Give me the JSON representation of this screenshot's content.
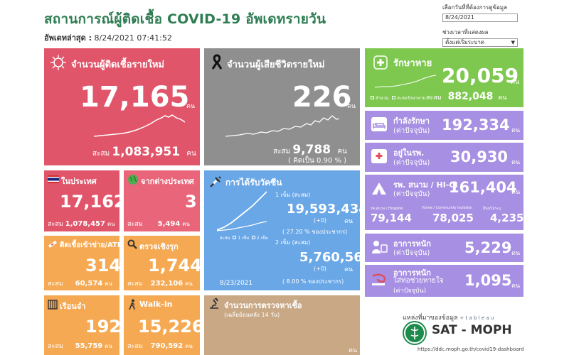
{
  "header": {
    "title": "สถานการณ์ผู้ติดเชื้อ COVID-19 อัพเดทรายวัน",
    "updated_label": "อัพเดทล่าสุด :",
    "updated_value": "8/24/2021 07:41:52"
  },
  "filters": {
    "date_label": "เลือกวันที่ที่ต้องการดูข้อมูล",
    "date_value": "8/24/2021",
    "range_label": "ช่วงเวลาที่แสดงผล",
    "range_value": "ตั้งแต่เริ่มระบาด"
  },
  "new_cases": {
    "title": "จำนวนผู้ติดเชื้อรายใหม่",
    "value": "17,165",
    "unit": "คน",
    "total_label": "สะสม",
    "total_value": "1,083,951",
    "total_unit": "คน"
  },
  "deaths": {
    "title": "จำนวนผู้เสียชีวิตรายใหม่",
    "value": "226",
    "unit": "คน",
    "total_label": "สะสม",
    "total_value": "9,788",
    "total_unit": "คน",
    "pct_text": "( คิดเป็น     0.90 % )"
  },
  "recovered": {
    "title": "รักษาหาย",
    "value": "20,059",
    "unit": "คน",
    "legend_daily": "จำนวน",
    "legend_cumulative": "สะสมรักษาหาย",
    "total_label": "สะสม",
    "total_value": "882,048",
    "total_unit": "คน"
  },
  "in_treatment": {
    "title": "กำลังรักษา",
    "subtitle": "(ค่าปัจจุบัน)",
    "value": "192,334",
    "unit": "คน"
  },
  "in_hospital": {
    "title": "อยู่ในรพ.",
    "subtitle": "(ค่าปัจจุบัน)",
    "value": "30,930",
    "unit": "คน"
  },
  "field_hospital": {
    "title": "รพ. สนาม / HI-CI",
    "subtitle": "(ค่าปัจจุบัน)",
    "value": "161,404",
    "unit": "คน",
    "sub1_label": "รพ.สนาม / Hospitel",
    "sub1_value": "79,144",
    "sub2_label": "Home / Community Isolation",
    "sub2_value": "78,025",
    "sub3_label": "อื่นๆ/ไม่ระบุ",
    "sub3_value": "4,235"
  },
  "severe": {
    "title": "อาการหนัก",
    "subtitle": "(ค่าปัจจุบัน)",
    "value": "5,229",
    "unit": "คน"
  },
  "ventilator": {
    "title": "อาการหนัก",
    "title2": "ใส่ท่อช่วยหายใจ",
    "subtitle": "(ค่าปัจจุบัน)",
    "value": "1,095",
    "unit": "คน"
  },
  "domestic": {
    "title": "ในประเทศ",
    "value": "17,162",
    "total_label": "สะสม",
    "total_value": "1,078,457",
    "total_unit": "คน"
  },
  "imported": {
    "title": "จากต่างประเทศ",
    "value": "3",
    "total_label": "สะสม",
    "total_value": "5,494",
    "total_unit": "คน"
  },
  "prison_atk": {
    "title": "ติดเชื้อเข้าข่าย/ATK",
    "value": "314",
    "total_label": "สะสม",
    "total_value": "60,574",
    "total_unit": "คน"
  },
  "proactive": {
    "title": "ตรวจเชิงรุก",
    "value": "1,744",
    "total_label": "สะสม",
    "total_value": "232,106",
    "total_unit": "คน"
  },
  "prison": {
    "title": "เรือนจำ",
    "value": "192",
    "total_label": "สะสม",
    "total_value": "55,759",
    "total_unit": "คน"
  },
  "walkin": {
    "title": "Walk-in",
    "value": "15,226",
    "total_label": "สะสม",
    "total_value": "790,592",
    "total_unit": "คน"
  },
  "vaccine": {
    "title": "การได้รับวัคซีน",
    "dose1_label": "1 เข็ม (สะสม)",
    "dose1_value": "19,593,434",
    "dose1_delta": "(+0)",
    "dose1_unit": "คน",
    "dose1_pct": "( 27.20 % ของประชากร)",
    "dose2_label": "2 เข็ม (สะสม)",
    "dose2_value": "5,760,567",
    "dose2_delta": "(+0)",
    "dose2_unit": "คน",
    "dose2_pct": "(   8.00 % ของประชากร)",
    "legend_cum": "สะสม",
    "legend_d1": "1 เข็ม",
    "legend_d2": "2 เข็ม",
    "date": "8/23/2021"
  },
  "tests": {
    "title": "จำนวนการตรวจหาเชื้อ",
    "subtitle": "(เฉลี่ยย้อนหลัง 14 วัน)",
    "unit": "คน"
  },
  "footer": {
    "source_label": "แหล่งที่มาของข้อมูล",
    "tableau": "+ t a b l e a u",
    "org": "SAT - MOPH",
    "url": "https://ddc.moph.go.th/covid19-dashboard"
  },
  "colors": {
    "red": "#e1556a",
    "grey": "#8f8f8f",
    "green": "#7ec850",
    "purple": "#a78fe3",
    "orange": "#f5a953",
    "blue": "#6aa7e6",
    "tan": "#c9a886",
    "title": "#2e7d52"
  }
}
